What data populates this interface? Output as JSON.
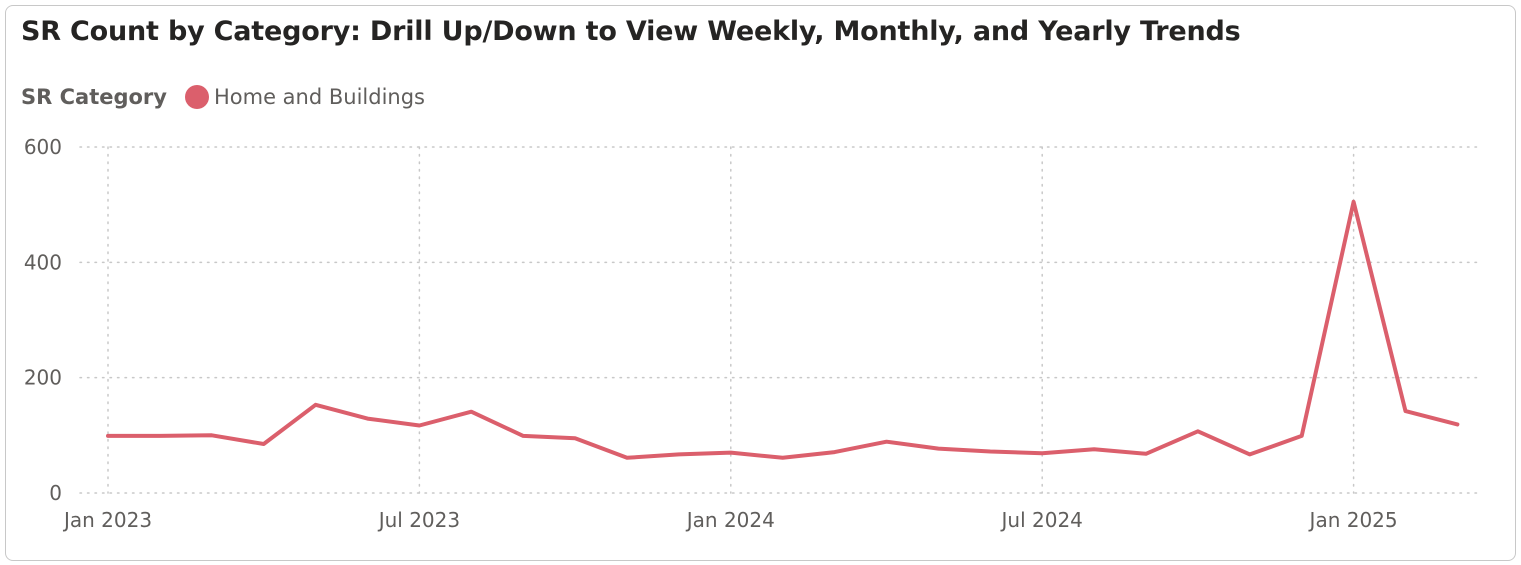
{
  "title": "SR Count by Category: Drill Up/Down to View Weekly, Monthly, and Yearly Trends",
  "legend": {
    "title": "SR Category",
    "items": [
      {
        "label": "Home and Buildings",
        "color": "#db5f6c"
      }
    ]
  },
  "chart_data": {
    "type": "line",
    "title": "SR Count by Category: Drill Up/Down to View Weekly, Monthly, and Yearly Trends",
    "xlabel": "",
    "ylabel": "",
    "ylim": [
      0,
      600
    ],
    "y_ticks": [
      0,
      200,
      400,
      600
    ],
    "x_ticks": [
      {
        "label": "Jan 2023",
        "index": 0
      },
      {
        "label": "Jul 2023",
        "index": 6
      },
      {
        "label": "Jan 2024",
        "index": 12
      },
      {
        "label": "Jul 2024",
        "index": 18
      },
      {
        "label": "Jan 2025",
        "index": 24
      }
    ],
    "grid": true,
    "legend_position": "top-left",
    "categories": [
      "Jan 2023",
      "Feb 2023",
      "Mar 2023",
      "Apr 2023",
      "May 2023",
      "Jun 2023",
      "Jul 2023",
      "Aug 2023",
      "Sep 2023",
      "Oct 2023",
      "Nov 2023",
      "Dec 2023",
      "Jan 2024",
      "Feb 2024",
      "Mar 2024",
      "Apr 2024",
      "May 2024",
      "Jun 2024",
      "Jul 2024",
      "Aug 2024",
      "Sep 2024",
      "Oct 2024",
      "Nov 2024",
      "Dec 2024",
      "Jan 2025",
      "Feb 2025",
      "Mar 2025"
    ],
    "series": [
      {
        "name": "Home and Buildings",
        "color": "#db5f6c",
        "values": [
          99,
          99,
          100,
          85,
          153,
          129,
          117,
          141,
          99,
          95,
          61,
          67,
          70,
          61,
          71,
          89,
          77,
          72,
          69,
          76,
          68,
          107,
          67,
          99,
          505,
          142,
          119
        ]
      }
    ]
  }
}
